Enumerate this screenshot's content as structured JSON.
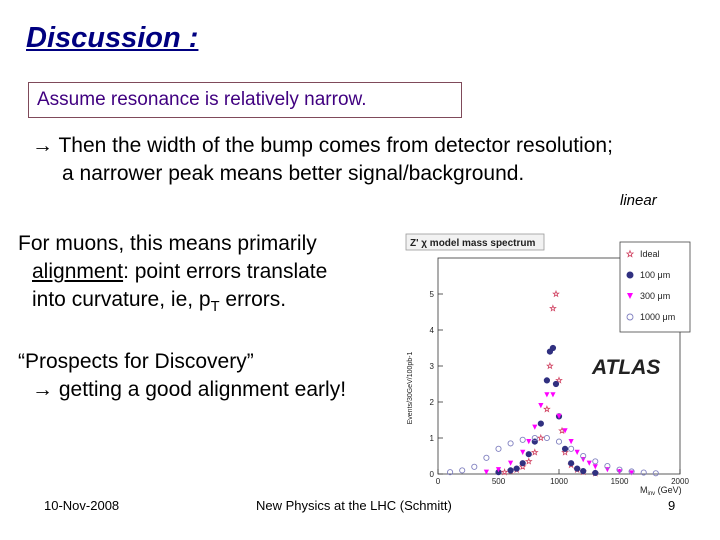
{
  "slide": {
    "title": "Discussion :",
    "boxed_statement": "Assume resonance is relatively narrow.",
    "line1": "→ Then the width of the bump comes from detector resolution;",
    "line2": "a narrower peak means better signal/background.",
    "linear_label": "linear",
    "muons_line1": "For muons, this means primarily",
    "muons_alignment": "alignment",
    "muons_line2_rest": ":  point errors translate",
    "muons_line3_a": "into curvature, ie, p",
    "muons_line3_sub": "T",
    "muons_line3_b": " errors.",
    "prospects_line1": "“Prospects for Discovery”",
    "prospects_line2": "→ getting a good alignment early!",
    "footer_date": "10-Nov-2008",
    "footer_center": "New Physics at the LHC (Schmitt)",
    "footer_page": "9"
  },
  "chart_data": {
    "type": "scatter",
    "title": "Z' χ model mass spectrum",
    "ylabel": "Events/30GeV/100pb-1",
    "xlabel": "M",
    "xlabel_sub": "inv",
    "xlabel_unit": " (GeV)",
    "watermark": "ATLAS",
    "xlim": [
      0,
      2000
    ],
    "ylim": [
      0,
      6
    ],
    "xticks": [
      0,
      500,
      1000,
      1500,
      2000
    ],
    "yticks": [
      0,
      1,
      2,
      3,
      4,
      5
    ],
    "legend_position": "top-right",
    "series": [
      {
        "name": "Ideal",
        "marker": "star",
        "color": "#d04060",
        "x": [
          550,
          600,
          650,
          700,
          750,
          800,
          850,
          900,
          925,
          950,
          975,
          1000,
          1025,
          1050,
          1100,
          1150,
          1200,
          1300
        ],
        "y": [
          0.05,
          0.08,
          0.12,
          0.2,
          0.35,
          0.6,
          1.0,
          1.8,
          3.0,
          4.6,
          5.0,
          2.6,
          1.2,
          0.6,
          0.25,
          0.12,
          0.06,
          0.02
        ]
      },
      {
        "name": "100 μm",
        "marker": "circle-filled",
        "color": "#303080",
        "x": [
          500,
          600,
          650,
          700,
          750,
          800,
          850,
          900,
          925,
          950,
          975,
          1000,
          1050,
          1100,
          1150,
          1200,
          1300
        ],
        "y": [
          0.05,
          0.1,
          0.15,
          0.3,
          0.55,
          0.9,
          1.4,
          2.6,
          3.4,
          3.5,
          2.5,
          1.6,
          0.7,
          0.3,
          0.15,
          0.08,
          0.03
        ]
      },
      {
        "name": "300 μm",
        "marker": "triangle-down",
        "color": "#ff00ff",
        "x": [
          400,
          500,
          600,
          700,
          750,
          800,
          850,
          900,
          950,
          1000,
          1050,
          1100,
          1150,
          1200,
          1250,
          1300,
          1400,
          1500,
          1600
        ],
        "y": [
          0.05,
          0.12,
          0.3,
          0.6,
          0.9,
          1.3,
          1.9,
          2.2,
          2.2,
          1.6,
          1.2,
          0.9,
          0.6,
          0.4,
          0.3,
          0.2,
          0.12,
          0.06,
          0.03
        ]
      },
      {
        "name": "1000 μm",
        "marker": "circle-open",
        "color": "#8080c0",
        "x": [
          100,
          200,
          300,
          400,
          500,
          600,
          700,
          800,
          900,
          1000,
          1100,
          1200,
          1300,
          1400,
          1500,
          1600,
          1700,
          1800
        ],
        "y": [
          0.05,
          0.1,
          0.2,
          0.45,
          0.7,
          0.85,
          0.95,
          1.0,
          1.0,
          0.9,
          0.7,
          0.5,
          0.35,
          0.22,
          0.12,
          0.07,
          0.04,
          0.02
        ]
      }
    ]
  }
}
